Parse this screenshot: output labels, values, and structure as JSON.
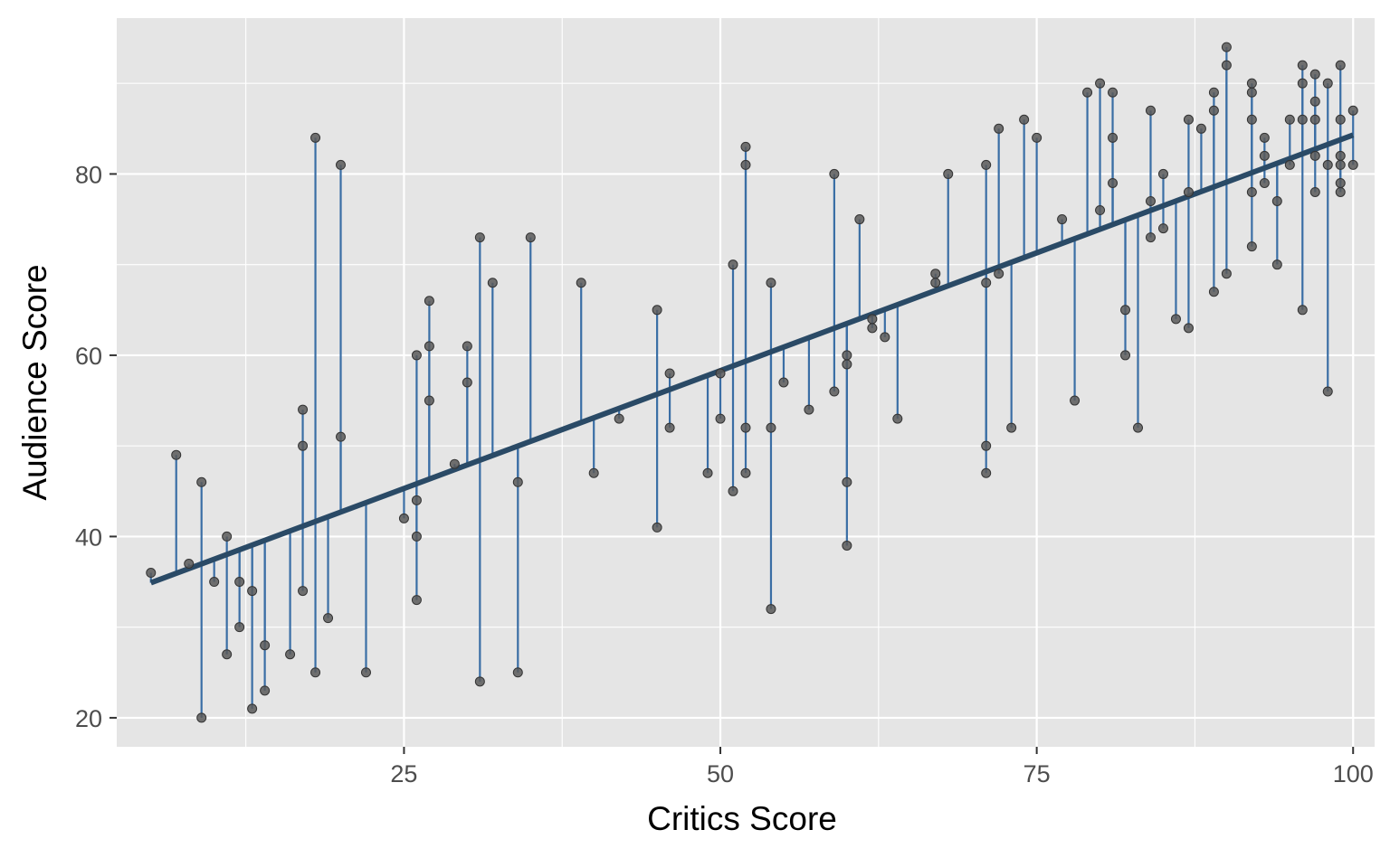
{
  "chart_data": {
    "type": "scatter",
    "title": "",
    "xlabel": "Critics Score",
    "ylabel": "Audience Score",
    "xlim": [
      2.3,
      101.7
    ],
    "ylim": [
      16.8,
      97.2
    ],
    "x_ticks": [
      25,
      50,
      75,
      100
    ],
    "y_ticks": [
      20,
      40,
      60,
      80
    ],
    "x_tick_labels": [
      "25",
      "50",
      "75",
      "100"
    ],
    "y_tick_labels": [
      "20",
      "40",
      "60",
      "80"
    ],
    "grid": true,
    "legend": "none",
    "fit_line": {
      "intercept": 32.3,
      "slope": 0.52
    },
    "colors": {
      "panel": "#e5e5e5",
      "grid": "#ffffff",
      "point": "#595959",
      "residual": "#3a6ea5",
      "fit": "#2a4a66",
      "tick_text": "#4d4d4d",
      "title_text": "#000000"
    },
    "points": [
      {
        "x": 5,
        "y": 36
      },
      {
        "x": 7,
        "y": 49
      },
      {
        "x": 8,
        "y": 37
      },
      {
        "x": 9,
        "y": 46
      },
      {
        "x": 9,
        "y": 20
      },
      {
        "x": 10,
        "y": 35
      },
      {
        "x": 11,
        "y": 40
      },
      {
        "x": 11,
        "y": 27
      },
      {
        "x": 12,
        "y": 35
      },
      {
        "x": 12,
        "y": 30
      },
      {
        "x": 13,
        "y": 34
      },
      {
        "x": 13,
        "y": 21
      },
      {
        "x": 14,
        "y": 28
      },
      {
        "x": 14,
        "y": 23
      },
      {
        "x": 16,
        "y": 27
      },
      {
        "x": 17,
        "y": 54
      },
      {
        "x": 17,
        "y": 50
      },
      {
        "x": 17,
        "y": 34
      },
      {
        "x": 18,
        "y": 84
      },
      {
        "x": 18,
        "y": 25
      },
      {
        "x": 19,
        "y": 31
      },
      {
        "x": 20,
        "y": 81
      },
      {
        "x": 20,
        "y": 51
      },
      {
        "x": 22,
        "y": 25
      },
      {
        "x": 25,
        "y": 42
      },
      {
        "x": 26,
        "y": 60
      },
      {
        "x": 26,
        "y": 44
      },
      {
        "x": 26,
        "y": 40
      },
      {
        "x": 26,
        "y": 33
      },
      {
        "x": 27,
        "y": 66
      },
      {
        "x": 27,
        "y": 61
      },
      {
        "x": 27,
        "y": 55
      },
      {
        "x": 29,
        "y": 48
      },
      {
        "x": 30,
        "y": 61
      },
      {
        "x": 30,
        "y": 57
      },
      {
        "x": 31,
        "y": 73
      },
      {
        "x": 31,
        "y": 24
      },
      {
        "x": 32,
        "y": 68
      },
      {
        "x": 34,
        "y": 46
      },
      {
        "x": 34,
        "y": 25
      },
      {
        "x": 35,
        "y": 73
      },
      {
        "x": 39,
        "y": 68
      },
      {
        "x": 40,
        "y": 47
      },
      {
        "x": 42,
        "y": 53
      },
      {
        "x": 45,
        "y": 65
      },
      {
        "x": 45,
        "y": 41
      },
      {
        "x": 46,
        "y": 58
      },
      {
        "x": 46,
        "y": 52
      },
      {
        "x": 49,
        "y": 47
      },
      {
        "x": 50,
        "y": 58
      },
      {
        "x": 50,
        "y": 53
      },
      {
        "x": 51,
        "y": 70
      },
      {
        "x": 51,
        "y": 45
      },
      {
        "x": 52,
        "y": 83
      },
      {
        "x": 52,
        "y": 81
      },
      {
        "x": 52,
        "y": 52
      },
      {
        "x": 52,
        "y": 47
      },
      {
        "x": 54,
        "y": 68
      },
      {
        "x": 54,
        "y": 52
      },
      {
        "x": 54,
        "y": 32
      },
      {
        "x": 55,
        "y": 57
      },
      {
        "x": 57,
        "y": 54
      },
      {
        "x": 59,
        "y": 80
      },
      {
        "x": 59,
        "y": 56
      },
      {
        "x": 60,
        "y": 60
      },
      {
        "x": 60,
        "y": 59
      },
      {
        "x": 60,
        "y": 46
      },
      {
        "x": 60,
        "y": 39
      },
      {
        "x": 61,
        "y": 75
      },
      {
        "x": 62,
        "y": 64
      },
      {
        "x": 62,
        "y": 63
      },
      {
        "x": 63,
        "y": 62
      },
      {
        "x": 64,
        "y": 53
      },
      {
        "x": 67,
        "y": 69
      },
      {
        "x": 67,
        "y": 68
      },
      {
        "x": 68,
        "y": 80
      },
      {
        "x": 71,
        "y": 81
      },
      {
        "x": 71,
        "y": 68
      },
      {
        "x": 71,
        "y": 50
      },
      {
        "x": 71,
        "y": 47
      },
      {
        "x": 72,
        "y": 85
      },
      {
        "x": 72,
        "y": 69
      },
      {
        "x": 73,
        "y": 52
      },
      {
        "x": 74,
        "y": 86
      },
      {
        "x": 75,
        "y": 84
      },
      {
        "x": 77,
        "y": 75
      },
      {
        "x": 78,
        "y": 55
      },
      {
        "x": 79,
        "y": 89
      },
      {
        "x": 80,
        "y": 90
      },
      {
        "x": 80,
        "y": 76
      },
      {
        "x": 81,
        "y": 89
      },
      {
        "x": 81,
        "y": 84
      },
      {
        "x": 81,
        "y": 79
      },
      {
        "x": 82,
        "y": 65
      },
      {
        "x": 82,
        "y": 60
      },
      {
        "x": 83,
        "y": 52
      },
      {
        "x": 84,
        "y": 87
      },
      {
        "x": 84,
        "y": 77
      },
      {
        "x": 84,
        "y": 73
      },
      {
        "x": 85,
        "y": 80
      },
      {
        "x": 85,
        "y": 74
      },
      {
        "x": 86,
        "y": 64
      },
      {
        "x": 87,
        "y": 86
      },
      {
        "x": 87,
        "y": 78
      },
      {
        "x": 87,
        "y": 63
      },
      {
        "x": 88,
        "y": 85
      },
      {
        "x": 89,
        "y": 89
      },
      {
        "x": 89,
        "y": 87
      },
      {
        "x": 89,
        "y": 67
      },
      {
        "x": 90,
        "y": 94
      },
      {
        "x": 90,
        "y": 92
      },
      {
        "x": 90,
        "y": 69
      },
      {
        "x": 92,
        "y": 90
      },
      {
        "x": 92,
        "y": 89
      },
      {
        "x": 92,
        "y": 86
      },
      {
        "x": 92,
        "y": 78
      },
      {
        "x": 92,
        "y": 72
      },
      {
        "x": 93,
        "y": 84
      },
      {
        "x": 93,
        "y": 82
      },
      {
        "x": 93,
        "y": 79
      },
      {
        "x": 94,
        "y": 77
      },
      {
        "x": 94,
        "y": 70
      },
      {
        "x": 95,
        "y": 86
      },
      {
        "x": 95,
        "y": 81
      },
      {
        "x": 96,
        "y": 92
      },
      {
        "x": 96,
        "y": 90
      },
      {
        "x": 96,
        "y": 86
      },
      {
        "x": 96,
        "y": 65
      },
      {
        "x": 97,
        "y": 91
      },
      {
        "x": 97,
        "y": 88
      },
      {
        "x": 97,
        "y": 86
      },
      {
        "x": 97,
        "y": 82
      },
      {
        "x": 97,
        "y": 78
      },
      {
        "x": 98,
        "y": 90
      },
      {
        "x": 98,
        "y": 81
      },
      {
        "x": 98,
        "y": 56
      },
      {
        "x": 99,
        "y": 92
      },
      {
        "x": 99,
        "y": 86
      },
      {
        "x": 99,
        "y": 82
      },
      {
        "x": 99,
        "y": 81
      },
      {
        "x": 99,
        "y": 79
      },
      {
        "x": 99,
        "y": 78
      },
      {
        "x": 100,
        "y": 87
      },
      {
        "x": 100,
        "y": 81
      }
    ]
  }
}
